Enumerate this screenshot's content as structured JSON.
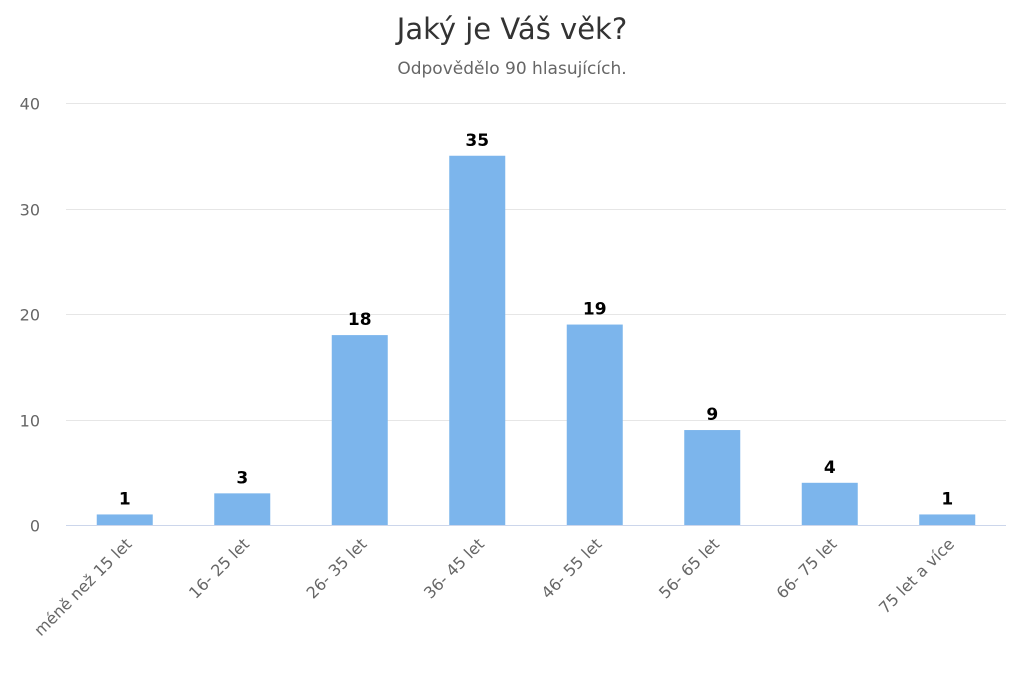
{
  "chart_data": {
    "type": "bar",
    "title": "Jaký je Váš věk?",
    "subtitle": "Odpovědělo 90 hlasujících.",
    "categories": [
      "méně než 15 let",
      "16- 25 let",
      "26- 35 let",
      "36- 45 let",
      "46- 55 let",
      "56- 65 let",
      "66- 75 let",
      "75 let a více"
    ],
    "values": [
      1,
      3,
      18,
      35,
      19,
      9,
      4,
      1
    ],
    "ylim": [
      0,
      40
    ],
    "yticks": [
      0,
      10,
      20,
      30,
      40
    ],
    "grid": true,
    "bar_color": "#7cb5ec",
    "xlabel": "",
    "ylabel": ""
  }
}
